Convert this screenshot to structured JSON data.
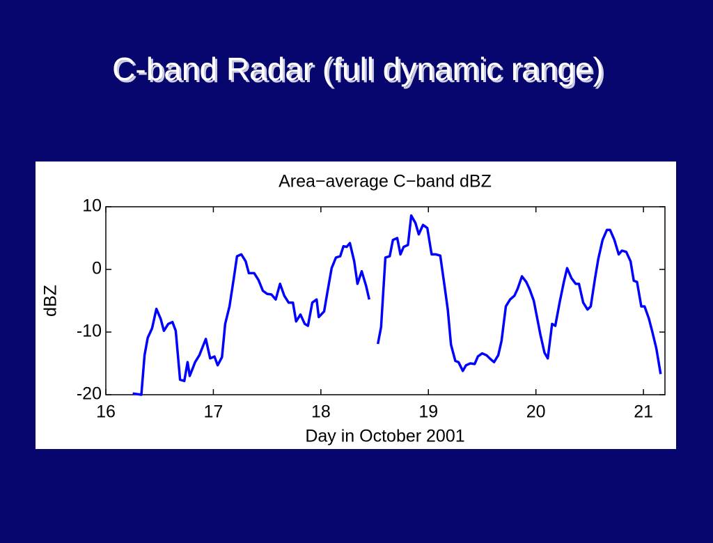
{
  "slide_title": "C-band Radar (full dynamic range)",
  "chart_data": {
    "type": "line",
    "title": "Area−average C−band dBZ",
    "x_label": "Day in October 2001",
    "y_label": "dBZ",
    "color": "#0000ff",
    "xlim": [
      16,
      21.2
    ],
    "xticks": [
      16,
      17,
      18,
      19,
      20,
      21
    ],
    "ylim": [
      -20,
      10
    ],
    "yticks": [
      -20,
      -10,
      0,
      10
    ],
    "grid": false,
    "x": [
      16.25,
      16.33,
      16.36,
      16.39,
      16.43,
      16.47,
      16.51,
      16.54,
      16.58,
      16.62,
      16.65,
      16.69,
      16.73,
      16.76,
      16.78,
      16.83,
      16.87,
      16.93,
      16.97,
      17.01,
      17.04,
      17.08,
      17.11,
      17.15,
      17.19,
      17.22,
      17.26,
      17.3,
      17.33,
      17.38,
      17.42,
      17.46,
      17.5,
      17.54,
      17.58,
      17.62,
      17.66,
      17.7,
      17.74,
      17.77,
      17.81,
      17.85,
      17.88,
      17.92,
      17.96,
      17.98,
      18.03,
      18.06,
      18.1,
      18.14,
      18.18,
      18.21,
      18.24,
      18.27,
      18.31,
      18.34,
      18.38,
      18.42,
      18.45,
      18.49,
      18.53,
      18.56,
      18.6,
      18.64,
      18.67,
      18.71,
      18.74,
      18.77,
      18.81,
      18.84,
      18.88,
      18.91,
      18.95,
      18.99,
      19.03,
      19.07,
      19.11,
      19.15,
      19.18,
      19.21,
      19.25,
      19.28,
      19.32,
      19.35,
      19.39,
      19.43,
      19.46,
      19.5,
      19.54,
      19.57,
      19.61,
      19.65,
      19.68,
      19.72,
      19.76,
      19.8,
      19.83,
      19.87,
      19.91,
      19.94,
      19.98,
      20.01,
      20.04,
      20.08,
      20.11,
      20.15,
      20.18,
      20.22,
      20.26,
      20.29,
      20.33,
      20.37,
      20.4,
      20.44,
      20.48,
      20.51,
      20.55,
      20.58,
      20.62,
      20.66,
      20.69,
      20.73,
      20.77,
      20.8,
      20.84,
      20.88,
      20.91,
      20.94,
      20.98,
      21.01,
      21.05,
      21.08,
      21.12,
      21.16
    ],
    "values": [
      -19.8,
      -20,
      -13.7,
      -10.9,
      -9.4,
      -6.3,
      -7.9,
      -9.8,
      -8.7,
      -8.4,
      -9.8,
      -17.6,
      -17.8,
      -14.8,
      -17,
      -14.8,
      -13.7,
      -11.1,
      -14.2,
      -13.9,
      -15.3,
      -14,
      -8.7,
      -5.9,
      -1.4,
      2.1,
      2.4,
      1.3,
      -0.6,
      -0.6,
      -1.7,
      -3.4,
      -3.9,
      -4,
      -4.8,
      -2.3,
      -4.2,
      -5.3,
      -5.3,
      -8.3,
      -7.2,
      -8.7,
      -9,
      -5.3,
      -4.8,
      -7.6,
      -6.7,
      -3.7,
      0.2,
      1.9,
      2.1,
      3.7,
      3.6,
      4.2,
      1.3,
      -2.3,
      -0.3,
      -2.6,
      -4.8,
      null,
      -11.9,
      -9.2,
      1.9,
      2.1,
      4.7,
      5,
      2.4,
      3.6,
      3.9,
      8.6,
      7.4,
      5.6,
      7.1,
      6.6,
      2.4,
      2.4,
      2.2,
      -2.6,
      -6.4,
      -12,
      -14.6,
      -14.8,
      -16.2,
      -15.3,
      -15,
      -15.1,
      -13.9,
      -13.4,
      -13.7,
      -14.2,
      -14.8,
      -13.7,
      -11.4,
      -5.9,
      -4.8,
      -4.2,
      -3.1,
      -1.1,
      -2,
      -3.1,
      -5,
      -7.6,
      -10.3,
      -13.3,
      -14.2,
      -8.7,
      -9,
      -5.3,
      -2,
      0.2,
      -1.4,
      -2.3,
      -2.3,
      -5.3,
      -6.4,
      -5.9,
      -1.4,
      1.7,
      4.7,
      6.3,
      6.3,
      4.7,
      2.4,
      3,
      2.8,
      1.3,
      -1.8,
      -2,
      -5.9,
      -5.9,
      -7.8,
      -9.8,
      -12.6,
      -16.7
    ]
  }
}
